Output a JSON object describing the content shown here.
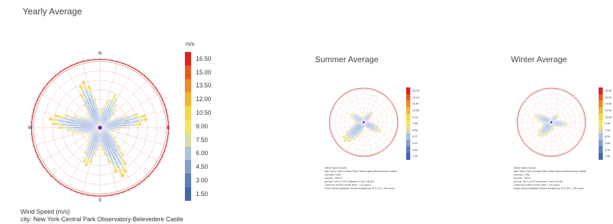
{
  "chart_data": [
    {
      "type": "wind-rose",
      "title": "Yearly Average",
      "unit": "m/s",
      "directions": [
        "N",
        "E",
        "S",
        "W"
      ],
      "legend_values": [
        "16.50",
        "15.00",
        "13.50",
        "12.00",
        "10.50",
        "9.00",
        "7.50",
        "6.00",
        "4.50",
        "3.00",
        "1.50"
      ],
      "legend_colors": [
        "#e0231c",
        "#e95a20",
        "#f08a2a",
        "#f5b431",
        "#f7d648",
        "#f2e565",
        "#d6dca3",
        "#a8c2da",
        "#7f9fcf",
        "#5d7fc0",
        "#4565b0"
      ],
      "caption": [
        "Wind Speed (m/s)",
        "city: New York-Central Park Observatory-Belevedere Castle"
      ]
    },
    {
      "type": "wind-rose",
      "title": "Summer Average",
      "unit": "m/s",
      "legend_values": [
        "14.00",
        "13.14",
        "11.82",
        "10.50",
        "9.24",
        "7.89",
        "6.56",
        "5.27",
        "3.97",
        "2.65",
        "1.35"
      ],
      "legend_colors": [
        "#e0231c",
        "#e95a20",
        "#f08a2a",
        "#f5b431",
        "#f7d648",
        "#f2e565",
        "#d6dca3",
        "#a8c2da",
        "#7f9fcf",
        "#5d7fc0",
        "#4565b0"
      ],
      "caption": [
        "Wind Speed (m/s)",
        "city: New York-Central Park Observatory-Belevedere Castle",
        "country: USA",
        "source: TMY3",
        "period: 6/1 to 1/31 between 0 and 18 @1",
        "Calm for 8.02% of the time = 10 hours",
        "Each closed polyline shows frequency of 2.1% = 50 hours"
      ]
    },
    {
      "type": "wind-rose",
      "title": "Winter Average",
      "unit": "m/s",
      "legend_values": [
        "16.50",
        "15.00",
        "13.50",
        "12.00",
        "10.50",
        "9.00",
        "7.50",
        "6.00",
        "4.50",
        "3.00",
        "1.50"
      ],
      "legend_colors": [
        "#e0231c",
        "#e95a20",
        "#f08a2a",
        "#f5b431",
        "#f7d648",
        "#f2e565",
        "#d6dca3",
        "#a8c2da",
        "#7f9fcf",
        "#5d7fc0",
        "#4565b0"
      ],
      "caption": [
        "Wind Speed (m/s)",
        "city: New York-Central Park Observatory-Belevedere Castle",
        "country: USA",
        "source: TMY3",
        "period: 11/1 to 4/2 between 0 and 18 @1",
        "Calm for 6.89% of the time = 10 hours",
        "Each closed polyline shows frequency of 3.0% = 50 hours"
      ]
    }
  ]
}
